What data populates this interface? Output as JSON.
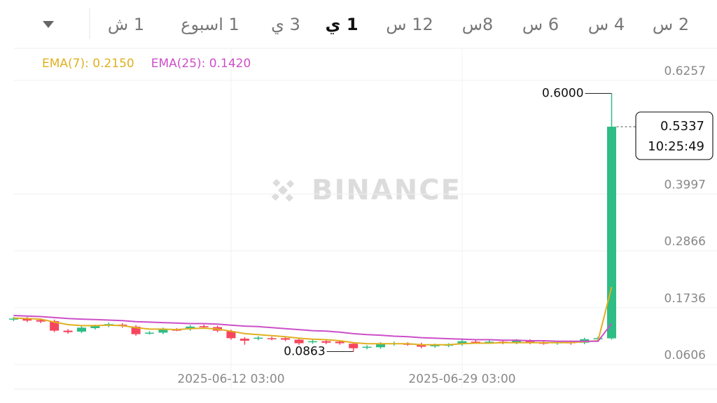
{
  "toolbar": {
    "tabs": [
      "1 ش",
      "1 اسبوع",
      "3 ي",
      "1 ي",
      "12 س",
      "8س",
      "6 س",
      "4 س",
      "2 س"
    ],
    "active_index": 3
  },
  "chart_data": {
    "type": "candlestick",
    "watermark": "BINANCE",
    "x": [
      "2025-05-27 03:00",
      "2025-05-28 03:00",
      "2025-05-29 03:00",
      "2025-05-30 03:00",
      "2025-05-31 03:00",
      "2025-06-01 03:00",
      "2025-06-02 03:00",
      "2025-06-03 03:00",
      "2025-06-04 03:00",
      "2025-06-05 03:00",
      "2025-06-06 03:00",
      "2025-06-07 03:00",
      "2025-06-08 03:00",
      "2025-06-09 03:00",
      "2025-06-10 03:00",
      "2025-06-11 03:00",
      "2025-06-12 03:00",
      "2025-06-13 03:00",
      "2025-06-14 03:00",
      "2025-06-15 03:00",
      "2025-06-16 03:00",
      "2025-06-17 03:00",
      "2025-06-18 03:00",
      "2025-06-19 03:00",
      "2025-06-20 03:00",
      "2025-06-21 03:00",
      "2025-06-22 03:00",
      "2025-06-23 03:00",
      "2025-06-24 03:00",
      "2025-06-25 03:00",
      "2025-06-26 03:00",
      "2025-06-27 03:00",
      "2025-06-28 03:00",
      "2025-06-29 03:00",
      "2025-06-30 03:00",
      "2025-07-01 03:00",
      "2025-07-02 03:00",
      "2025-07-03 03:00",
      "2025-07-04 03:00",
      "2025-07-05 03:00",
      "2025-07-06 03:00",
      "2025-07-07 03:00",
      "2025-07-08 03:00",
      "2025-07-09 03:00",
      "2025-07-10 03:00"
    ],
    "open": [
      0.15,
      0.152,
      0.149,
      0.147,
      0.128,
      0.126,
      0.133,
      0.138,
      0.14,
      0.136,
      0.123,
      0.124,
      0.13,
      0.131,
      0.137,
      0.135,
      0.127,
      0.112,
      0.112,
      0.113,
      0.113,
      0.11,
      0.105,
      0.107,
      0.106,
      0.102,
      0.094,
      0.095,
      0.101,
      0.102,
      0.101,
      0.097,
      0.098,
      0.101,
      0.106,
      0.105,
      0.106,
      0.104,
      0.108,
      0.104,
      0.103,
      0.105,
      0.104,
      0.111,
      0.1127
    ],
    "high": [
      0.155,
      0.155,
      0.152,
      0.15,
      0.131,
      0.137,
      0.14,
      0.144,
      0.143,
      0.139,
      0.127,
      0.134,
      0.133,
      0.139,
      0.14,
      0.138,
      0.13,
      0.115,
      0.117,
      0.116,
      0.116,
      0.113,
      0.11,
      0.11,
      0.109,
      0.105,
      0.099,
      0.105,
      0.106,
      0.105,
      0.104,
      0.102,
      0.103,
      0.11,
      0.109,
      0.109,
      0.109,
      0.111,
      0.111,
      0.107,
      0.108,
      0.108,
      0.114,
      0.116,
      0.6
    ],
    "low": [
      0.147,
      0.145,
      0.143,
      0.125,
      0.122,
      0.123,
      0.13,
      0.135,
      0.134,
      0.118,
      0.12,
      0.121,
      0.127,
      0.128,
      0.133,
      0.125,
      0.11,
      0.1,
      0.109,
      0.109,
      0.107,
      0.1,
      0.102,
      0.101,
      0.1,
      0.0863,
      0.091,
      0.092,
      0.098,
      0.098,
      0.093,
      0.094,
      0.095,
      0.098,
      0.102,
      0.102,
      0.101,
      0.101,
      0.101,
      0.1,
      0.1,
      0.1,
      0.101,
      0.108,
      0.11
    ],
    "close": [
      0.152,
      0.148,
      0.146,
      0.128,
      0.125,
      0.134,
      0.137,
      0.141,
      0.137,
      0.121,
      0.124,
      0.131,
      0.129,
      0.136,
      0.136,
      0.128,
      0.113,
      0.108,
      0.114,
      0.112,
      0.11,
      0.103,
      0.107,
      0.104,
      0.103,
      0.093,
      0.096,
      0.102,
      0.103,
      0.101,
      0.096,
      0.099,
      0.1,
      0.107,
      0.105,
      0.106,
      0.104,
      0.108,
      0.104,
      0.103,
      0.105,
      0.103,
      0.111,
      0.113,
      0.5337
    ],
    "up_color": "#2ebd85",
    "down_color": "#f6465d",
    "series": [
      {
        "name": "EMA(7): 0.2150",
        "color": "#e0b020",
        "values": [
          0.153,
          0.152,
          0.151,
          0.145,
          0.14,
          0.138,
          0.138,
          0.139,
          0.138,
          0.134,
          0.131,
          0.131,
          0.13,
          0.132,
          0.133,
          0.131,
          0.127,
          0.122,
          0.12,
          0.118,
          0.116,
          0.113,
          0.111,
          0.11,
          0.108,
          0.104,
          0.102,
          0.102,
          0.102,
          0.102,
          0.1,
          0.1,
          0.1,
          0.102,
          0.103,
          0.103,
          0.104,
          0.104,
          0.104,
          0.104,
          0.104,
          0.104,
          0.106,
          0.108,
          0.215
        ]
      },
      {
        "name": "EMA(25): 0.1420",
        "color": "#cc4fc8",
        "values": [
          0.158,
          0.157,
          0.156,
          0.154,
          0.152,
          0.151,
          0.15,
          0.149,
          0.148,
          0.146,
          0.145,
          0.144,
          0.143,
          0.142,
          0.142,
          0.141,
          0.139,
          0.137,
          0.136,
          0.134,
          0.132,
          0.13,
          0.128,
          0.127,
          0.125,
          0.122,
          0.12,
          0.119,
          0.117,
          0.116,
          0.114,
          0.113,
          0.112,
          0.111,
          0.11,
          0.11,
          0.109,
          0.109,
          0.108,
          0.108,
          0.107,
          0.107,
          0.107,
          0.107,
          0.142
        ]
      }
    ],
    "high_label": {
      "value": 0.6,
      "label": "0.6000"
    },
    "low_label": {
      "value": 0.0863,
      "label": "0.0863"
    },
    "last_price": 0.5337,
    "countdown": "10:25:49",
    "ylim": [
      0.0133,
      0.6883
    ],
    "yticks": [
      0.0606,
      0.1736,
      0.2866,
      0.3997,
      0.6257
    ],
    "xticks": [
      "2025-06-12 03:00",
      "2025-06-29 03:00"
    ],
    "grid": true
  }
}
